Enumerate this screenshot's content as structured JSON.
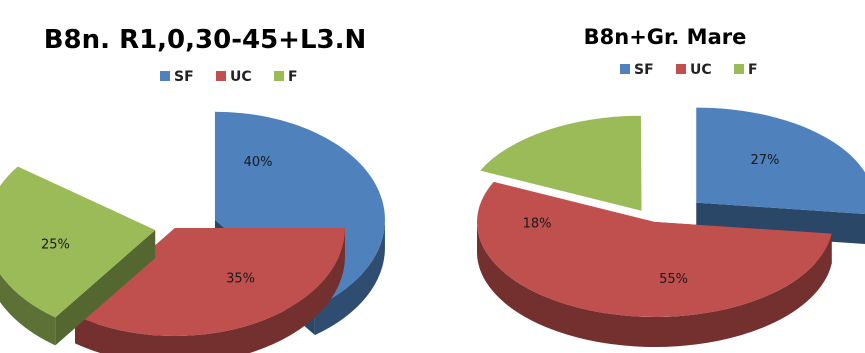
{
  "chart_data": [
    {
      "type": "pie",
      "title": "B8n. R1,0,30-45+L3.N",
      "legend_position": "top",
      "legend": [
        "SF",
        "UC",
        "F"
      ],
      "categories": [
        "SF",
        "UC",
        "F"
      ],
      "values": [
        40,
        35,
        25
      ],
      "labels": [
        "40%",
        "35%",
        "25%"
      ],
      "colors": {
        "SF": "#4F81BD",
        "UC": "#C0504D",
        "F": "#9BBB59"
      },
      "style": "3d-exploded"
    },
    {
      "type": "pie",
      "title": "B8n+Gr. Mare",
      "legend_position": "top",
      "legend": [
        "SF",
        "UC",
        "F"
      ],
      "categories": [
        "SF",
        "UC",
        "F"
      ],
      "values": [
        27,
        55,
        18
      ],
      "labels": [
        "27%",
        "55%",
        "18%"
      ],
      "colors": {
        "SF": "#4F81BD",
        "UC": "#C0504D",
        "F": "#9BBB59"
      },
      "style": "3d-exploded"
    }
  ]
}
